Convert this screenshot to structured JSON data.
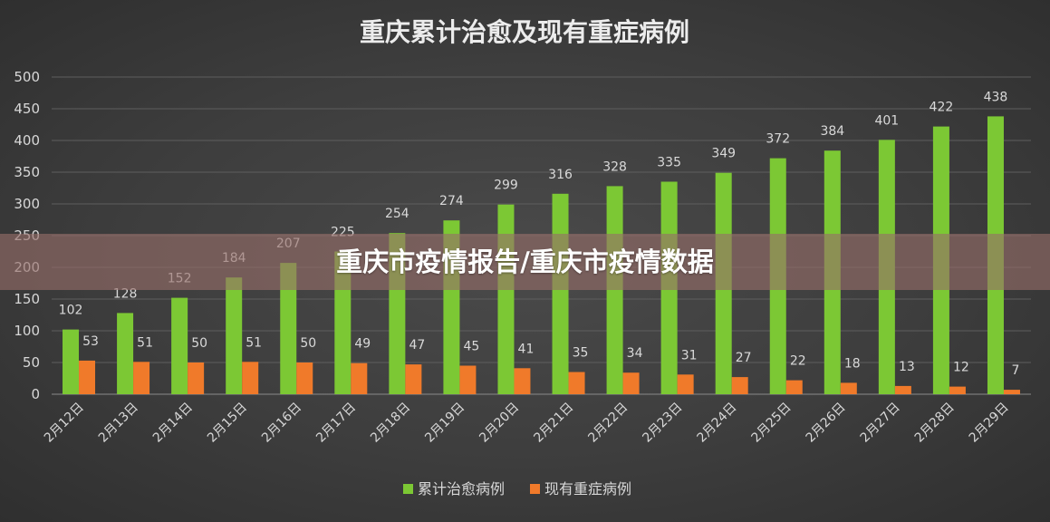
{
  "banner": {
    "text": "重庆市疫情报告/重庆市疫情数据"
  },
  "chart_data": {
    "type": "bar",
    "title": "重庆累计治愈及现有重症病例",
    "xlabel": "",
    "ylabel": "",
    "ylim": [
      0,
      500
    ],
    "yticks": [
      0,
      50,
      100,
      150,
      200,
      250,
      300,
      350,
      400,
      450,
      500
    ],
    "grid": true,
    "legend_position": "bottom",
    "categories": [
      "2月12日",
      "2月13日",
      "2月14日",
      "2月15日",
      "2月16日",
      "2月17日",
      "2月18日",
      "2月19日",
      "2月20日",
      "2月21日",
      "2月22日",
      "2月23日",
      "2月24日",
      "2月25日",
      "2月26日",
      "2月27日",
      "2月28日",
      "2月29日"
    ],
    "series": [
      {
        "name": "累计治愈病例",
        "color": "#7cc834",
        "values": [
          102,
          128,
          152,
          184,
          207,
          225,
          254,
          274,
          299,
          316,
          328,
          335,
          349,
          372,
          384,
          401,
          422,
          438
        ]
      },
      {
        "name": "现有重症病例",
        "color": "#f07a2a",
        "values": [
          53,
          51,
          50,
          51,
          50,
          49,
          47,
          45,
          41,
          35,
          34,
          31,
          27,
          22,
          18,
          13,
          12,
          7
        ]
      }
    ]
  }
}
